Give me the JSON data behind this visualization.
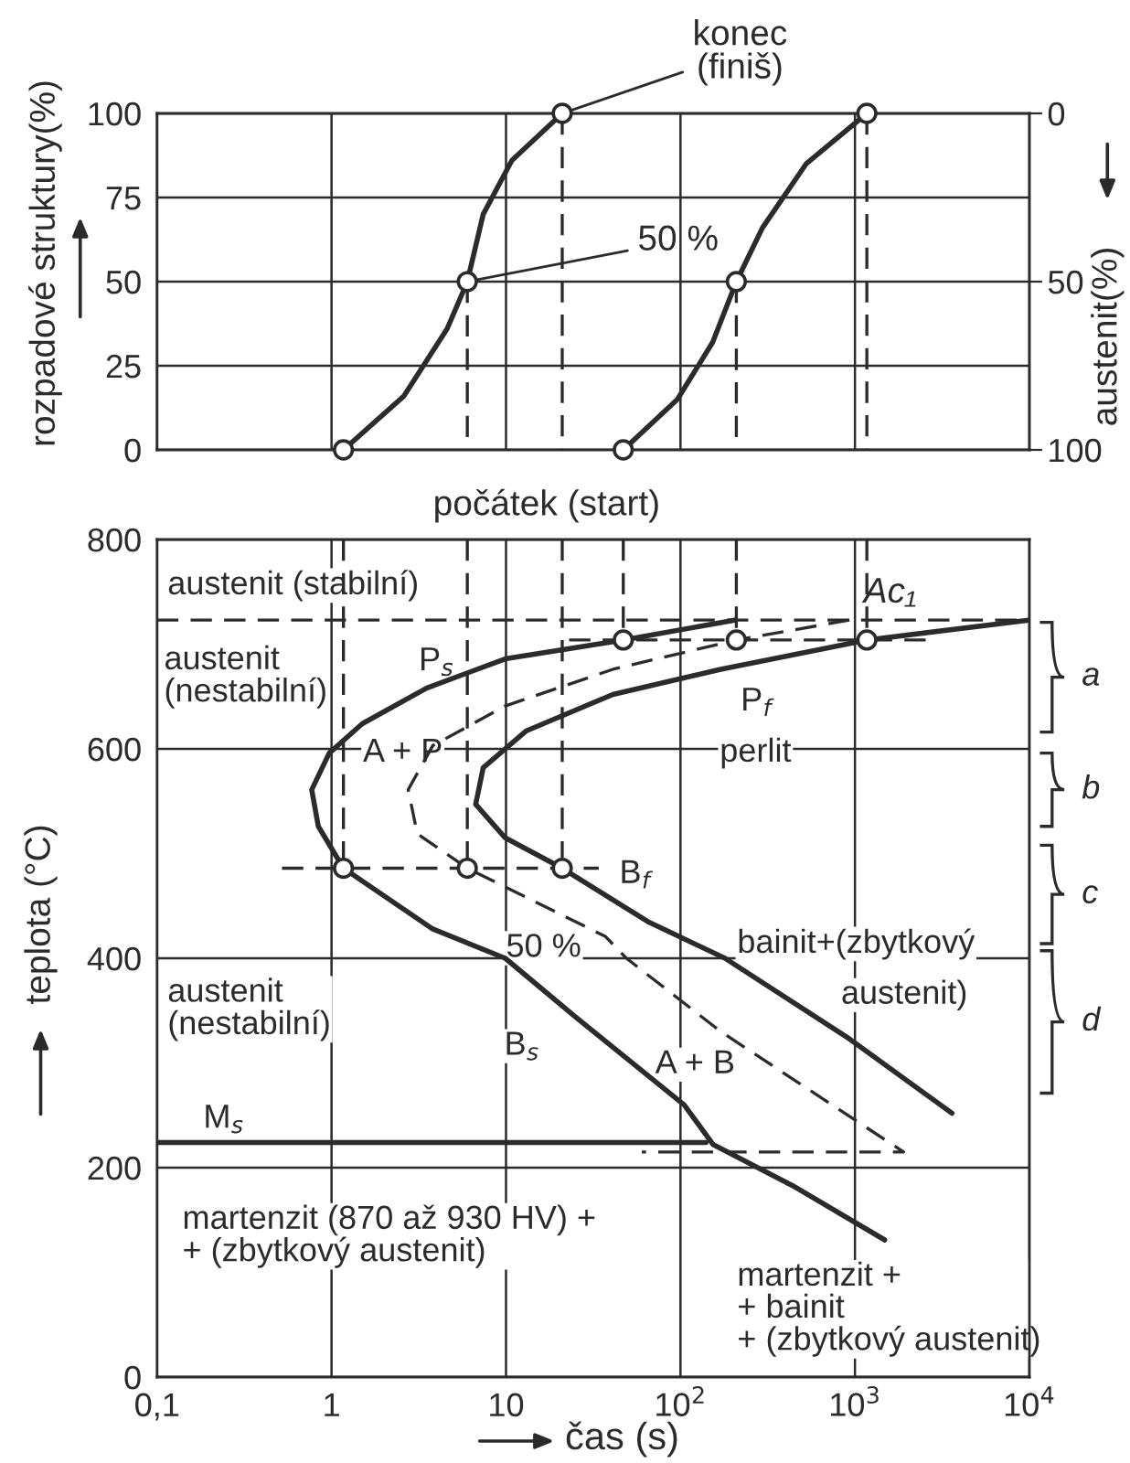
{
  "chart_data": [
    {
      "type": "line",
      "ylabel": "rozpadové struktury(%)",
      "y2label": "austenit(%)",
      "log": "x",
      "grid": true,
      "tick_labels": "y",
      "xlim": [
        0.1,
        10000
      ],
      "xticks": [
        0.1,
        1,
        10,
        100,
        1000,
        10000
      ],
      "ylim": [
        0,
        100
      ],
      "yticks": [
        0,
        25,
        50,
        75,
        100
      ],
      "y2lim": [
        100,
        0
      ],
      "y2ticks": [
        0,
        50,
        100
      ],
      "series": [
        {
          "color": "#2b2b2b",
          "line_style": "solid",
          "x": [
            1.17,
            2.6,
            4.6,
            6,
            7.4,
            10.8,
            21
          ],
          "values": [
            0,
            16,
            36,
            50,
            70,
            86,
            100
          ]
        },
        {
          "color": "#2b2b2b",
          "line_style": "solid",
          "x": [
            47,
            96,
            153,
            209,
            295,
            525,
            1170
          ],
          "values": [
            0,
            15,
            32,
            50,
            66,
            85,
            100
          ]
        },
        {
          "color": "#2b2b2b",
          "line_style": "dashed",
          "x": [
            6,
            6
          ],
          "values": [
            50,
            0
          ]
        },
        {
          "color": "#2b2b2b",
          "line_style": "dashed",
          "x": [
            21,
            21
          ],
          "values": [
            100,
            0
          ]
        },
        {
          "color": "#2b2b2b",
          "line_style": "dashed",
          "x": [
            209,
            209
          ],
          "values": [
            50,
            0
          ]
        },
        {
          "color": "#2b2b2b",
          "line_style": "dashed",
          "x": [
            1170,
            1170
          ],
          "values": [
            100,
            0
          ]
        },
        {
          "type": "scatter",
          "marker": "circle",
          "color": "#2b2b2b",
          "x": [
            1.17,
            6,
            21,
            47,
            209,
            1170
          ],
          "values": [
            0,
            50,
            100,
            0,
            50,
            100
          ]
        }
      ],
      "annotations": [
        {
          "text": "konec\n(finiš)",
          "x": 21,
          "y": 100
        },
        {
          "text": "50 %",
          "x": 6,
          "y": 50
        },
        {
          "text": "počátek (start)",
          "x": 1.17,
          "y": 0
        }
      ]
    },
    {
      "type": "line",
      "xlabel": "čas (s)",
      "ylabel": "teplota (°C)",
      "log": "x",
      "grid": true,
      "xlim": [
        0.1,
        10000
      ],
      "xticks": [
        {
          "value": 0.1,
          "label": "0,1"
        },
        1,
        10,
        {
          "value": 100,
          "label": "10$^{2}$"
        },
        {
          "value": 1000,
          "label": "10$^{3}$"
        },
        {
          "value": 10000,
          "label": "10$^{4}$"
        }
      ],
      "ylim": [
        0,
        800
      ],
      "yticks": [
        0,
        200,
        400,
        600,
        800
      ],
      "series": [
        {
          "color": "#2b2b2b",
          "line_style": "solid",
          "x": [
            204,
            47,
            9.9,
            3.5,
            1.5,
            0.97,
            0.77,
            0.84,
            1.17,
            3.8,
            9.9,
            25,
            105,
            154,
            437,
            1480
          ],
          "values": [
            723,
            704,
            686,
            658,
            624,
            596,
            561,
            526,
            486,
            428,
            400,
            344,
            260,
            222,
            183,
            131
          ]
        },
        {
          "color": "#2b2b2b",
          "line_style": "solid",
          "x": [
            9900,
            1170,
            170,
            41,
            13,
            7.4,
            6.7,
            9.9,
            21,
            65,
            180,
            930,
            3600
          ],
          "values": [
            723,
            704,
            676,
            652,
            617,
            582,
            547,
            515,
            486,
            435,
            400,
            323,
            252
          ]
        },
        {
          "color": "#2b2b2b",
          "line_style": "dashed",
          "x": [
            930,
            209,
            41,
            9.9,
            3.8,
            2.75,
            3.1,
            6,
            37,
            49,
            170,
            1900,
            60
          ],
          "values": [
            723,
            704,
            676,
            641,
            603,
            561,
            519,
            486,
            421,
            400,
            330,
            215,
            215
          ]
        },
        {
          "color": "#2b2b2b",
          "line_style": "solid",
          "x": [
            0.1,
            140
          ],
          "values": [
            224,
            224
          ]
        },
        {
          "color": "#2b2b2b",
          "line_style": "dashed",
          "x": [
            23,
            2600
          ],
          "values": [
            704,
            704
          ]
        },
        {
          "color": "#2b2b2b",
          "line_style": "dashed",
          "x": [
            0.52,
            34
          ],
          "values": [
            486,
            486
          ]
        },
        {
          "color": "#2b2b2b",
          "line_style": "dashed",
          "x": [
            1.17,
            1.17
          ],
          "values": [
            800,
            486
          ]
        },
        {
          "color": "#2b2b2b",
          "line_style": "dashed",
          "x": [
            6,
            6
          ],
          "values": [
            800,
            486
          ]
        },
        {
          "color": "#2b2b2b",
          "line_style": "dashed",
          "x": [
            21,
            21
          ],
          "values": [
            800,
            486
          ]
        },
        {
          "color": "#2b2b2b",
          "line_style": "dashed",
          "x": [
            47,
            47
          ],
          "values": [
            800,
            704
          ]
        },
        {
          "color": "#2b2b2b",
          "line_style": "dashed",
          "x": [
            209,
            209
          ],
          "values": [
            800,
            704
          ]
        },
        {
          "color": "#2b2b2b",
          "line_style": "dashed",
          "x": [
            1170,
            1170
          ],
          "values": [
            800,
            704
          ]
        },
        {
          "type": "scatter",
          "marker": "circle",
          "color": "#2b2b2b",
          "x": [
            47,
            209,
            1170,
            1.17,
            6,
            21
          ],
          "values": [
            704,
            704,
            704,
            486,
            486,
            486
          ]
        }
      ],
      "ref_lines": [
        {
          "axis": "y",
          "value": 723,
          "label": "Ac₁",
          "line_style": "dashed",
          "color": "#2b2b2b"
        }
      ],
      "annotations": [
        "austenit (stabilní)",
        "austenit\n(nestabilní)",
        "P$_{s}$",
        "A + P",
        "P$_{f}$",
        "perlit",
        "B$_{f}$",
        "50 %",
        "bainit+(zbytkový",
        "austenit)",
        "austenit\n(nestabilní)",
        "B$_{s}$",
        "A + B",
        "M$_{s}$",
        "martenzit (870 až 930 HV) +\n+ (zbytkový austenit)",
        "martenzit +\n+ bainit\n+ (zbytkový austenit)",
        "a",
        "b",
        "c",
        "d"
      ]
    }
  ]
}
